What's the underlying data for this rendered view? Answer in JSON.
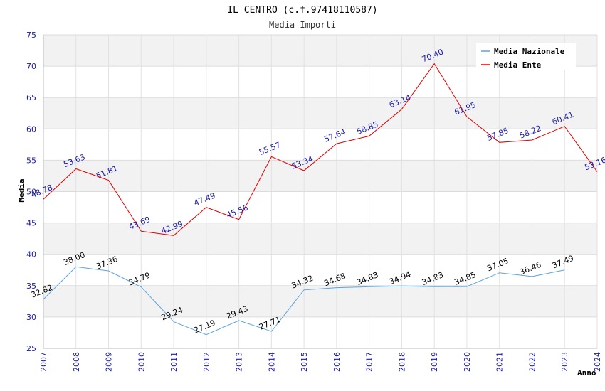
{
  "chart_data": {
    "type": "line",
    "title": "IL CENTRO (c.f.97418110587)",
    "subtitle": "Media Importi",
    "xlabel": "Anno",
    "ylabel": "Media",
    "ylim": [
      25,
      75
    ],
    "yticks": [
      25,
      30,
      35,
      40,
      45,
      50,
      55,
      60,
      65,
      70,
      75
    ],
    "x": [
      2007,
      2008,
      2009,
      2010,
      2011,
      2012,
      2013,
      2014,
      2015,
      2016,
      2017,
      2018,
      2019,
      2020,
      2021,
      2022,
      2023,
      2024
    ],
    "grid": true,
    "legend_position": "top-right",
    "series": [
      {
        "name": "Media Nazionale",
        "color": "#5ba3e0",
        "label_color": "#000000",
        "values": [
          32.82,
          38.0,
          37.36,
          34.79,
          29.24,
          27.19,
          29.43,
          27.71,
          34.32,
          34.68,
          34.83,
          34.94,
          34.83,
          34.85,
          37.05,
          36.46,
          37.49,
          null
        ],
        "labels": [
          "32.82",
          "38.00",
          "37.36",
          "34.79",
          "29.24",
          "27.19",
          "29.43",
          "27.71",
          "34.32",
          "34.68",
          "34.83",
          "34.94",
          "34.83",
          "34.85",
          "37.05",
          "36.46",
          "37.49",
          null
        ]
      },
      {
        "name": "Media Ente",
        "color": "#e00000",
        "label_color": "#1a1aa8",
        "values": [
          48.78,
          53.63,
          51.81,
          43.69,
          42.99,
          47.49,
          45.56,
          55.57,
          53.34,
          57.64,
          58.85,
          63.14,
          70.4,
          61.95,
          57.85,
          58.22,
          60.41,
          53.16
        ],
        "labels": [
          "48.78",
          "53.63",
          "51.81",
          "43.69",
          "42.99",
          "47.49",
          "45.56",
          "55.57",
          "53.34",
          "57.64",
          "58.85",
          "63.14",
          "70.40",
          "61.95",
          "57.85",
          "58.22",
          "60.41",
          "53.16"
        ]
      }
    ]
  }
}
